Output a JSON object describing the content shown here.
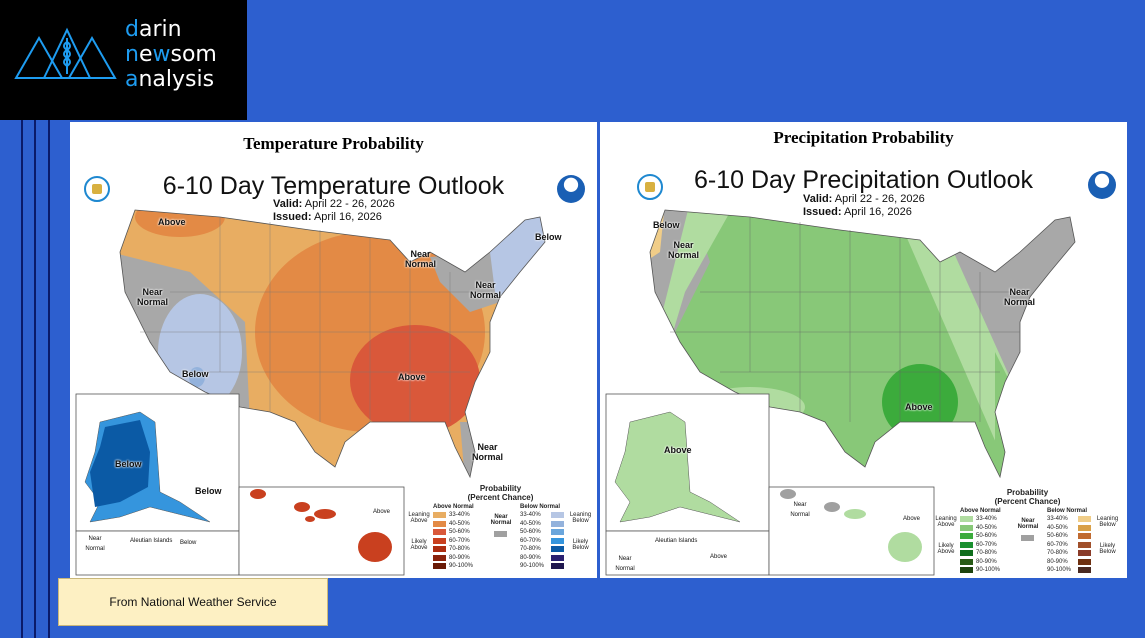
{
  "logo": {
    "line1_accent": "d",
    "line1_rest": "arin",
    "line2_accent": "n",
    "line2_mid": "e",
    "line2_accent2": "w",
    "line2_rest": "som",
    "line3_accent": "a",
    "line3_rest": "nalysis"
  },
  "temperature": {
    "panel_title": "Temperature Probability",
    "outlook_title": "6-10 Day Temperature Outlook",
    "valid_label": "Valid:",
    "valid_value": "April 22 - 26, 2026",
    "issued_label": "Issued:",
    "issued_value": "April 16, 2026",
    "labels": {
      "nw_above": "Above",
      "west_near": "Near Normal",
      "sw_below": "Below",
      "se_above": "Above",
      "gl_near": "Near Normal",
      "ne_near": "Near Normal",
      "ne_below": "Below",
      "se_near": "Near Normal",
      "ak_below": "Below",
      "ak_se_below": "Below",
      "ak_near": "Near Normal",
      "aleutian": "Aleutian Islands",
      "aleutian_below": "Below",
      "hi_above": "Above"
    },
    "legend": {
      "title": "Probability",
      "subtitle": "(Percent Chance)",
      "above_header": "Above Normal",
      "below_header": "Below Normal",
      "near": "Near Normal",
      "leaning_above": "Leaning Above",
      "likely_above": "Likely Above",
      "leaning_below": "Leaning Below",
      "likely_below": "Likely Below",
      "ranges": [
        "33-40%",
        "40-50%",
        "50-60%",
        "60-70%",
        "70-80%",
        "80-90%",
        "90-100%"
      ],
      "above_colors": [
        "#e8ad62",
        "#e38a45",
        "#d9583a",
        "#c9401f",
        "#ad2e12",
        "#8a220c",
        "#6a1a06"
      ],
      "below_colors": [
        "#b6c6e4",
        "#93b2dc",
        "#6aa6dc",
        "#3595dd",
        "#0b5aa5",
        "#2a2070",
        "#20184f"
      ],
      "near_color": "#a0a0a0"
    }
  },
  "precipitation": {
    "panel_title": "Precipitation Probability",
    "outlook_title": "6-10 Day Precipitation Outlook",
    "valid_label": "Valid:",
    "valid_value": "April 22 - 26, 2026",
    "issued_label": "Issued:",
    "issued_value": "April 16, 2026",
    "labels": {
      "nw_below": "Below",
      "nw_near": "Near Normal",
      "east_near": "Near Normal",
      "se_above": "Above",
      "ak_above": "Above",
      "hi_near": "Near Normal",
      "hi_above": "Above",
      "ak_near": "Near Normal",
      "aleutian": "Aleutian Islands",
      "aleutian_above": "Above"
    },
    "legend": {
      "title": "Probability",
      "subtitle": "(Percent Chance)",
      "above_header": "Above Normal",
      "below_header": "Below Normal",
      "near": "Near Normal",
      "leaning_above": "Leaning Above",
      "likely_above": "Likely Above",
      "leaning_below": "Leaning Below",
      "likely_below": "Likely Below",
      "ranges": [
        "33-40%",
        "40-50%",
        "50-60%",
        "60-70%",
        "70-80%",
        "80-90%",
        "90-100%"
      ],
      "above_colors": [
        "#b0dca0",
        "#88c878",
        "#3cab3c",
        "#1a9030",
        "#0f6e1c",
        "#275a15",
        "#1d430f"
      ],
      "below_colors": [
        "#f0cd88",
        "#d9a048",
        "#c06a30",
        "#a04f2a",
        "#8a3b28",
        "#6e3010",
        "#4a2a22"
      ],
      "near_color": "#a0a0a0"
    }
  },
  "source_note": "From National Weather Service"
}
